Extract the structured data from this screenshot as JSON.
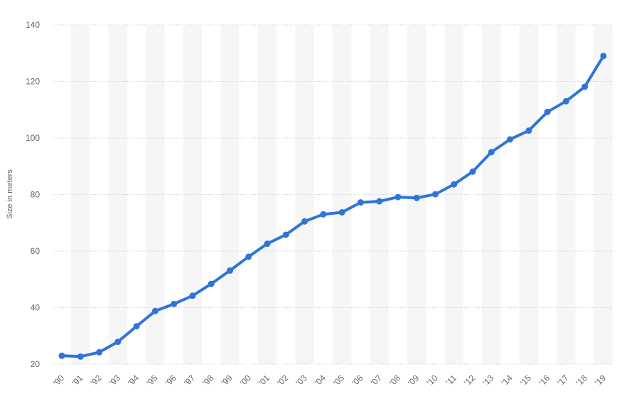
{
  "chart_data": {
    "type": "line",
    "ylabel": "Size in meters",
    "ylim": [
      20,
      140
    ],
    "yticks": [
      20,
      40,
      60,
      80,
      100,
      120,
      140
    ],
    "grid": true,
    "categories": [
      "'90",
      "'91",
      "'92",
      "'93",
      "'94",
      "'95",
      "'96",
      "'97",
      "'98",
      "'99",
      "'00",
      "'01",
      "'02",
      "'03",
      "'04",
      "'05",
      "'06",
      "'07",
      "'08",
      "'09",
      "'10",
      "'11",
      "'12",
      "'13",
      "'14",
      "'15",
      "'16",
      "'17",
      "'18",
      "'19"
    ],
    "series": [
      {
        "values": [
          23.0,
          22.7,
          24.2,
          27.9,
          33.4,
          38.8,
          41.3,
          44.2,
          48.4,
          53.1,
          58.0,
          62.6,
          65.8,
          70.5,
          73.0,
          73.7,
          77.2,
          77.6,
          79.1,
          78.8,
          80.1,
          83.6,
          88.1,
          95.0,
          99.5,
          102.6,
          109.2,
          113.0,
          118.1,
          129.0
        ]
      }
    ],
    "colors": {
      "line": "#2f74d9",
      "band": "#f6f6f6",
      "grid": "#cccccc"
    }
  }
}
